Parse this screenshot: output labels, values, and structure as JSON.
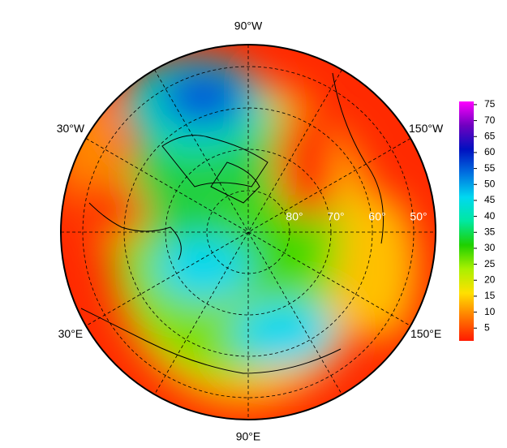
{
  "map": {
    "meridian_labels": [
      "90°W",
      "150°W",
      "150°E",
      "90°E",
      "30°E",
      "30°W"
    ],
    "latitude_circles": [
      {
        "value": 80,
        "label": "80°"
      },
      {
        "value": 70,
        "label": "70°"
      },
      {
        "value": 60,
        "label": "60°"
      },
      {
        "value": 50,
        "label": "50°"
      }
    ],
    "colorbar": {
      "lim": [
        1,
        76
      ],
      "ticks": [
        5,
        10,
        15,
        20,
        25,
        30,
        35,
        40,
        45,
        50,
        55,
        60,
        65,
        70,
        75
      ],
      "colors": [
        "#ff1a00",
        "#ff7a00",
        "#ffe000",
        "#aaf000",
        "#1ed000",
        "#00e8a0",
        "#00d8f0",
        "#0070e0",
        "#0010c0",
        "#7000c0",
        "#ff00ff"
      ]
    }
  }
}
